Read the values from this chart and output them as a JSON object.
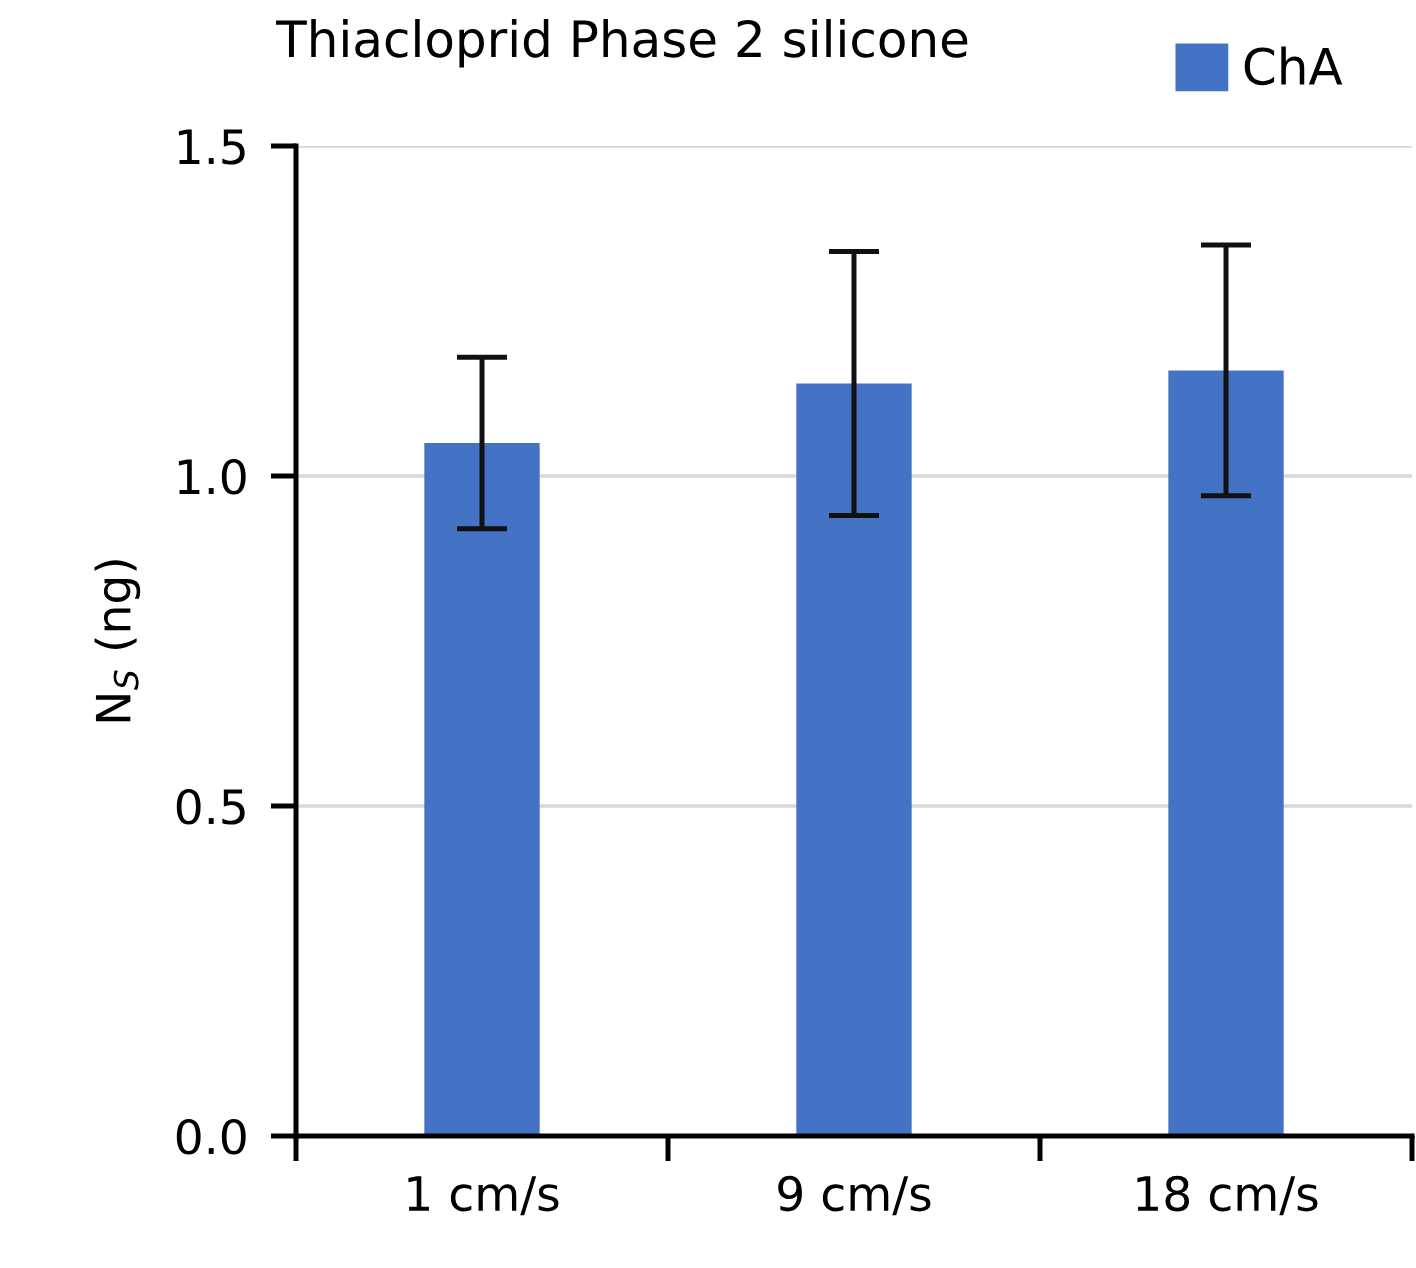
{
  "chart_data": {
    "type": "bar",
    "title": "Thiacloprid Phase 2 silicone",
    "ylabel": "N$_{S}$ (ng)",
    "categories": [
      "1 cm/s",
      "9 cm/s",
      "18 cm/s"
    ],
    "series": [
      {
        "name": "ChA",
        "color": "#4472c4",
        "values": [
          1.05,
          1.14,
          1.16
        ],
        "errors": [
          0.13,
          0.2,
          0.19
        ]
      }
    ],
    "ylim": [
      0,
      1.5
    ],
    "yticks": [
      {
        "value": 0,
        "label": "0.0"
      },
      {
        "value": 0.5,
        "label": "0.5"
      },
      {
        "value": 1.0,
        "label": "1.0"
      },
      {
        "value": 1.5,
        "label": "1.5"
      }
    ],
    "grid": "y",
    "legend": "top right"
  }
}
